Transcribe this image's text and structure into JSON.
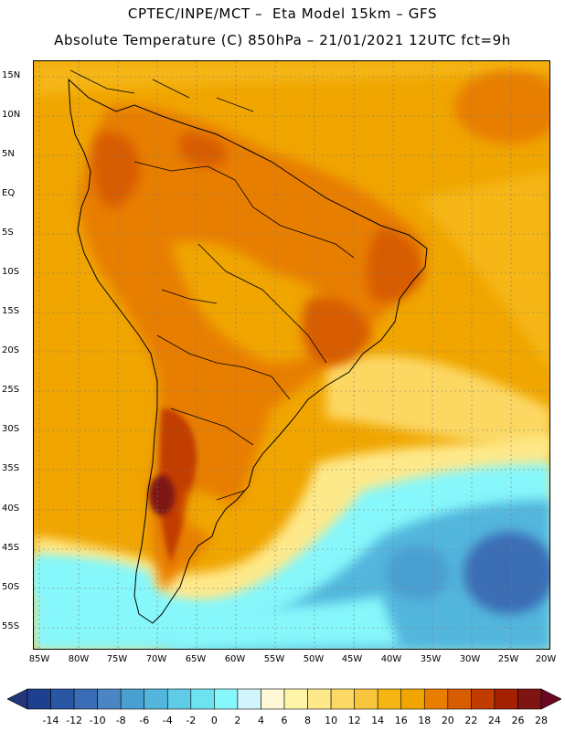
{
  "header": {
    "title_line1": "CPTEC/INPE/MCT –  Eta Model 15km – GFS",
    "title_line2": "Absolute Temperature (C) 850hPa – 21/01/2021 12UTC fct=9h"
  },
  "map": {
    "lat_labels": [
      "15N",
      "10N",
      "5N",
      "EQ",
      "5S",
      "10S",
      "15S",
      "20S",
      "25S",
      "30S",
      "35S",
      "40S",
      "45S",
      "50S",
      "55S"
    ],
    "lon_labels": [
      "85W",
      "80W",
      "75W",
      "70W",
      "65W",
      "60W",
      "55W",
      "50W",
      "45W",
      "40W",
      "35W",
      "30W",
      "25W",
      "20W"
    ],
    "region": "South America"
  },
  "colorbar": {
    "labels": [
      "-14",
      "-12",
      "-10",
      "-8",
      "-6",
      "-4",
      "-2",
      "0",
      "2",
      "4",
      "6",
      "8",
      "10",
      "12",
      "14",
      "16",
      "18",
      "20",
      "22",
      "24",
      "26",
      "28"
    ],
    "colors": [
      "#1f3f8f",
      "#2b56a3",
      "#3a6db5",
      "#4a86c4",
      "#4a9fd1",
      "#52b6dd",
      "#5fcbe6",
      "#6ee2ef",
      "#86f7fb",
      "#d2f4fb",
      "#fff8d6",
      "#fff5a8",
      "#fee98a",
      "#fcd864",
      "#f8c63c",
      "#f5b614",
      "#f0a500",
      "#e87e00",
      "#d85c00",
      "#c23c00",
      "#a32000",
      "#7f1414"
    ],
    "under_color": "#24357a",
    "over_color": "#6a0822",
    "units": "C"
  }
}
